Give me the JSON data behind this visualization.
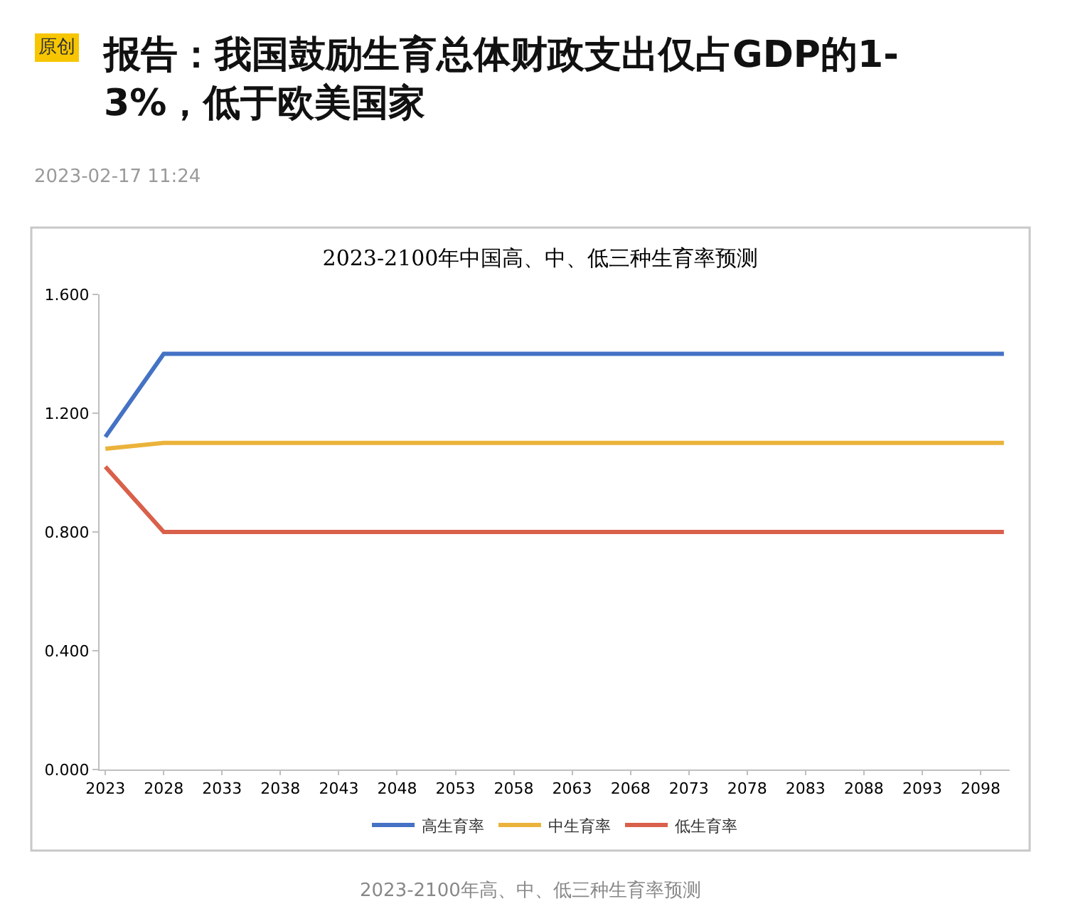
{
  "chart_data": {
    "type": "line",
    "title": "2023-2100年中国高、中、低三种生育率预测",
    "x": [
      2023,
      2028,
      2100
    ],
    "series": [
      {
        "name": "高生育率",
        "color": "#4472c4",
        "values": [
          1.12,
          1.4,
          1.4
        ]
      },
      {
        "name": "中生育率",
        "color": "#ebb33b",
        "values": [
          1.08,
          1.1,
          1.1
        ]
      },
      {
        "name": "低生育率",
        "color": "#d9604a",
        "values": [
          1.02,
          0.8,
          0.8
        ]
      }
    ],
    "xlim": [
      2022.5,
      2100.5
    ],
    "xticks": [
      2023,
      2028,
      2033,
      2038,
      2043,
      2048,
      2053,
      2058,
      2063,
      2068,
      2073,
      2078,
      2083,
      2088,
      2093,
      2098
    ],
    "ylim": [
      0,
      1.6
    ],
    "yticks": [
      {
        "value": 0,
        "label": "0.000"
      },
      {
        "value": 0.4,
        "label": "0.400"
      },
      {
        "value": 0.8,
        "label": "0.800"
      },
      {
        "value": 1.2,
        "label": "1.200"
      },
      {
        "value": 1.6,
        "label": "1.600"
      }
    ],
    "grid": false,
    "legend": "bottom",
    "marker": "none",
    "line_style": "solid",
    "annotations": [
      "原创",
      "报告：我国鼓励生育总体财政支出仅占GDP的1-3%，低于欧美国家",
      "2023-02-17 11:24",
      "2023-2100年高、中、低三种生育率预测"
    ]
  }
}
